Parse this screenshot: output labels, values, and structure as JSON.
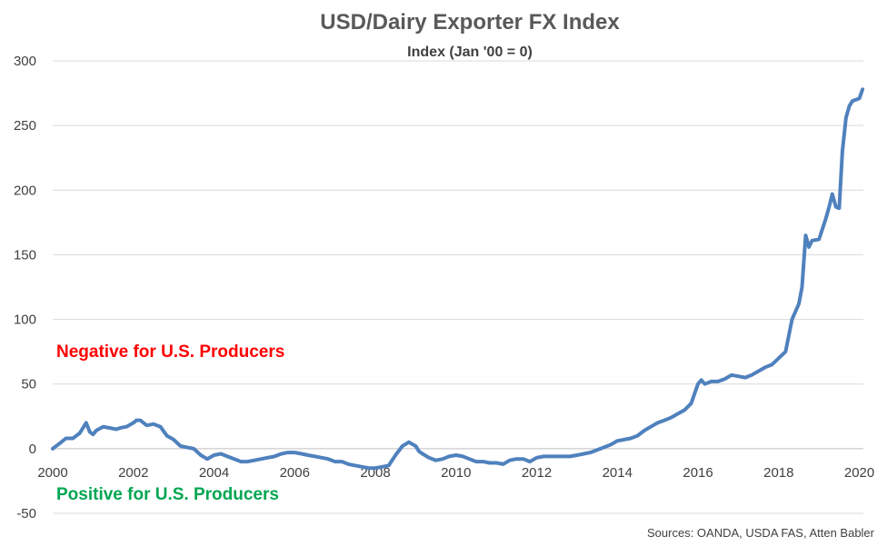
{
  "chart_data": {
    "type": "line",
    "title": "USD/Dairy Exporter FX Index",
    "subtitle": "Index (Jan '00 = 0)",
    "xlabel": "",
    "ylabel": "",
    "xlim": [
      2000,
      2020.1
    ],
    "ylim": [
      -50,
      300
    ],
    "x_ticks": [
      "2000",
      "2002",
      "2004",
      "2006",
      "2008",
      "2010",
      "2012",
      "2014",
      "2016",
      "2018",
      "2020"
    ],
    "y_ticks": [
      "300",
      "250",
      "200",
      "150",
      "100",
      "50",
      "0",
      "-50"
    ],
    "grid": true,
    "line_color": "#4f81bd",
    "annotations": {
      "negative": {
        "text": "Negative for U.S. Producers",
        "color": "#ff0000"
      },
      "positive": {
        "text": "Positive for U.S. Producers",
        "color": "#00a651"
      }
    },
    "source": "Sources: OANDA, USDA FAS, Atten Babler",
    "series": [
      {
        "x": [
          2000.0,
          2000.17,
          2000.33,
          2000.5,
          2000.67,
          2000.83,
          2000.92,
          2001.0,
          2001.08,
          2001.25,
          2001.42,
          2001.58,
          2001.67,
          2001.83,
          2002.0,
          2002.08,
          2002.17,
          2002.33,
          2002.5,
          2002.67,
          2002.83,
          2003.0,
          2003.17,
          2003.33,
          2003.5,
          2003.67,
          2003.83,
          2004.0,
          2004.17,
          2004.33,
          2004.5,
          2004.67,
          2004.83,
          2005.0,
          2005.17,
          2005.33,
          2005.5,
          2005.67,
          2005.83,
          2006.0,
          2006.17,
          2006.33,
          2006.5,
          2006.67,
          2006.83,
          2007.0,
          2007.17,
          2007.33,
          2007.5,
          2007.67,
          2007.83,
          2008.0,
          2008.17,
          2008.33,
          2008.5,
          2008.67,
          2008.83,
          2009.0,
          2009.08,
          2009.17,
          2009.33,
          2009.5,
          2009.67,
          2009.83,
          2010.0,
          2010.17,
          2010.33,
          2010.5,
          2010.67,
          2010.83,
          2011.0,
          2011.17,
          2011.33,
          2011.5,
          2011.67,
          2011.83,
          2012.0,
          2012.17,
          2012.33,
          2012.5,
          2012.67,
          2012.83,
          2013.0,
          2013.17,
          2013.33,
          2013.5,
          2013.67,
          2013.83,
          2014.0,
          2014.17,
          2014.33,
          2014.5,
          2014.67,
          2014.83,
          2015.0,
          2015.17,
          2015.33,
          2015.5,
          2015.67,
          2015.83,
          2016.0,
          2016.08,
          2016.17,
          2016.33,
          2016.5,
          2016.67,
          2016.83,
          2017.0,
          2017.17,
          2017.33,
          2017.5,
          2017.67,
          2017.83,
          2018.0,
          2018.17,
          2018.33,
          2018.5,
          2018.58,
          2018.67,
          2018.75,
          2018.83,
          2019.0,
          2019.17,
          2019.25,
          2019.33,
          2019.42,
          2019.5,
          2019.58,
          2019.67,
          2019.75,
          2019.83,
          2019.92,
          2020.0,
          2020.08
        ],
        "values": [
          0,
          4,
          8,
          8,
          12,
          20,
          13,
          11,
          14,
          17,
          16,
          15,
          16,
          17,
          20,
          22,
          22,
          18,
          19,
          17,
          10,
          7,
          2,
          1,
          0,
          -5,
          -8,
          -5,
          -4,
          -6,
          -8,
          -10,
          -10,
          -9,
          -8,
          -7,
          -6,
          -4,
          -3,
          -3,
          -4,
          -5,
          -6,
          -7,
          -8,
          -10,
          -10,
          -12,
          -13,
          -14,
          -15,
          -15,
          -14,
          -13,
          -5,
          2,
          5,
          2,
          -2,
          -4,
          -7,
          -9,
          -8,
          -6,
          -5,
          -6,
          -8,
          -10,
          -10,
          -11,
          -11,
          -12,
          -9,
          -8,
          -8,
          -10,
          -7,
          -6,
          -6,
          -6,
          -6,
          -6,
          -5,
          -4,
          -3,
          -1,
          1,
          3,
          6,
          7,
          8,
          10,
          14,
          17,
          20,
          22,
          24,
          27,
          30,
          35,
          50,
          53,
          50,
          52,
          52,
          54,
          57,
          56,
          55,
          57,
          60,
          63,
          65,
          70,
          75,
          100,
          112,
          125,
          165,
          156,
          161,
          162,
          178,
          187,
          197,
          187,
          186,
          230,
          256,
          265,
          269,
          270,
          271,
          278
        ]
      }
    ]
  }
}
